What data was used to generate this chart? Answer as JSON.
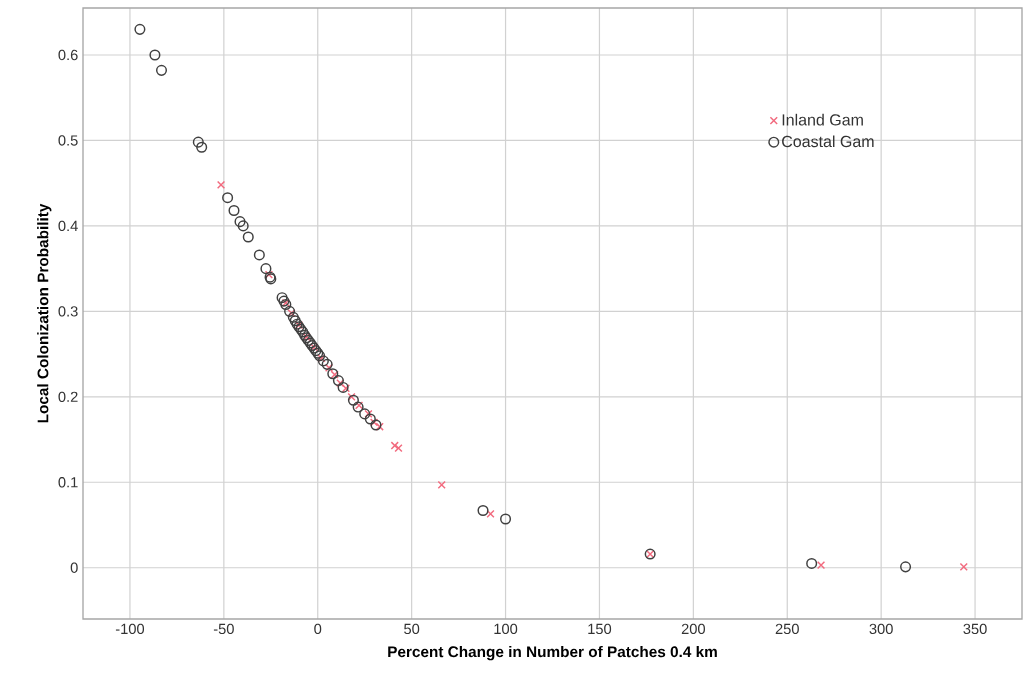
{
  "chart_data": {
    "type": "scatter",
    "xlabel": "Percent Change in Number of Patches 0.4 km",
    "ylabel": "Local Colonization Probability",
    "xlim": [
      -125,
      375
    ],
    "ylim": [
      -0.06,
      0.655
    ],
    "xticks": [
      -100,
      -50,
      0,
      50,
      100,
      150,
      200,
      250,
      300,
      350
    ],
    "yticks": [
      0,
      0.1,
      0.2,
      0.3,
      0.4,
      0.5,
      0.6
    ],
    "grid": true,
    "legend": "top right",
    "series": [
      {
        "name": "Inland Gam",
        "color": "#f26b7f",
        "marker": "cross",
        "x": [
          -51.5,
          -26,
          -17,
          -14,
          -10,
          -6,
          -2,
          2,
          6,
          9,
          12,
          15,
          18,
          22,
          27,
          30,
          33,
          41,
          43,
          66,
          92,
          177,
          268,
          344
        ],
        "values": [
          0.448,
          0.343,
          0.31,
          0.298,
          0.284,
          0.27,
          0.258,
          0.245,
          0.234,
          0.226,
          0.216,
          0.21,
          0.2,
          0.19,
          0.18,
          0.17,
          0.165,
          0.143,
          0.14,
          0.097,
          0.063,
          0.016,
          0.003,
          0.001
        ]
      },
      {
        "name": "Coastal Gam",
        "color": "#404040",
        "marker": "circle",
        "x": [
          -94.7,
          -86.7,
          -83.2,
          -63.6,
          -61.8,
          -48,
          -44.6,
          -41.4,
          -39.7,
          -37,
          -31.1,
          -27.6,
          -25.4,
          -25,
          -19,
          -18,
          -17,
          -15,
          -13,
          -12,
          -11,
          -10,
          -9,
          -8,
          -7,
          -6,
          -5,
          -4,
          -3,
          -2,
          -1,
          0,
          1,
          3,
          5,
          8,
          11,
          13.5,
          19,
          21.5,
          25,
          28,
          31,
          88,
          100,
          177,
          263,
          313
        ],
        "values": [
          0.63,
          0.6,
          0.582,
          0.498,
          0.492,
          0.433,
          0.418,
          0.405,
          0.4,
          0.387,
          0.366,
          0.35,
          0.34,
          0.338,
          0.316,
          0.312,
          0.308,
          0.3,
          0.293,
          0.289,
          0.285,
          0.282,
          0.279,
          0.276,
          0.272,
          0.269,
          0.266,
          0.263,
          0.26,
          0.257,
          0.254,
          0.251,
          0.248,
          0.242,
          0.238,
          0.227,
          0.219,
          0.211,
          0.196,
          0.188,
          0.18,
          0.174,
          0.167,
          0.067,
          0.057,
          0.016,
          0.005,
          0.001
        ]
      }
    ]
  }
}
